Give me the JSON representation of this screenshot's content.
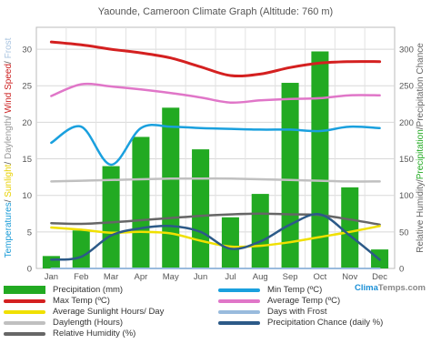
{
  "chart_data": {
    "type": "bar",
    "title": "Yaounde, Cameroon Climate Graph (Altitude: 760 m)",
    "categories": [
      "Jan",
      "Feb",
      "Mar",
      "Apr",
      "May",
      "Jun",
      "Jul",
      "Aug",
      "Sep",
      "Oct",
      "Nov",
      "Dec"
    ],
    "y_left_ticks": [
      0,
      5,
      10,
      15,
      20,
      25,
      30
    ],
    "y_right_ticks": [
      0,
      50,
      100,
      150,
      200,
      250,
      300
    ],
    "ylim_left": [
      0,
      33
    ],
    "ylim_right": [
      0,
      330
    ],
    "grid": true,
    "ylabel_left": [
      {
        "text": "Temperatures",
        "color": "#1a9bd7"
      },
      {
        "text": "/ ",
        "color": "#555555"
      },
      {
        "text": "Sunlight",
        "color": "#e8d000"
      },
      {
        "text": "/ ",
        "color": "#555555"
      },
      {
        "text": "Daylength",
        "color": "#999999"
      },
      {
        "text": "/ ",
        "color": "#555555"
      },
      {
        "text": "Wind Speed",
        "color": "#cc2222"
      },
      {
        "text": "/ ",
        "color": "#555555"
      },
      {
        "text": "Frost",
        "color": "#aac4e0"
      }
    ],
    "ylabel_right": [
      {
        "text": "Relative Humidity",
        "color": "#666666"
      },
      {
        "text": "/",
        "color": "#555555"
      },
      {
        "text": "Precipitation",
        "color": "#22aa22"
      },
      {
        "text": "/",
        "color": "#555555"
      },
      {
        "text": "Precipitation Chance",
        "color": "#666666"
      }
    ],
    "precipitation_mm": [
      17,
      52,
      140,
      180,
      220,
      163,
      70,
      102,
      254,
      297,
      111,
      26
    ],
    "series": [
      {
        "name": "Max Temp (ºC)",
        "axis": "left",
        "color": "#d42020",
        "values": [
          31,
          30.6,
          30,
          29.5,
          28.8,
          27.6,
          26.4,
          26.6,
          27.5,
          28.1,
          28.3,
          28.3
        ]
      },
      {
        "name": "Average Temp (ºC)",
        "axis": "left",
        "color": "#e076c8",
        "values": [
          23.6,
          25.2,
          24.9,
          24.5,
          24,
          23.4,
          22.7,
          23,
          23.2,
          23.3,
          23.7,
          23.7
        ]
      },
      {
        "name": "Min Temp (ºC)",
        "axis": "left",
        "color": "#1aa0de",
        "values": [
          17.2,
          19.4,
          14.2,
          19.2,
          19.4,
          19.2,
          19.1,
          19,
          19,
          18.8,
          19.4,
          19.2
        ]
      },
      {
        "name": "Daylength (Hours)",
        "axis": "left",
        "color": "#c0c0c0",
        "values": [
          11.9,
          12,
          12.1,
          12.2,
          12.3,
          12.3,
          12.3,
          12.2,
          12.1,
          12,
          11.9,
          11.9
        ]
      },
      {
        "name": "Relative Humidity (%)",
        "axis": "right",
        "color": "#666666",
        "values": [
          62,
          61,
          63,
          66,
          69,
          72,
          74,
          75,
          74,
          73,
          67,
          60
        ]
      },
      {
        "name": "Average Sunlight Hours/ Day",
        "axis": "left",
        "color": "#f0e000",
        "values": [
          5.6,
          5.3,
          4.9,
          5.0,
          4.8,
          3.8,
          3.0,
          3.1,
          3.6,
          4.3,
          5.0,
          5.8
        ]
      },
      {
        "name": "Precipitation Chance (daily %)",
        "axis": "right",
        "color": "#2c5a88",
        "values": [
          12,
          16,
          45,
          55,
          58,
          50,
          27,
          37,
          60,
          74,
          45,
          12
        ]
      },
      {
        "name": "Days with Frost",
        "axis": "left",
        "color": "#99bbdd",
        "values": [
          0,
          0,
          0,
          0,
          0,
          0,
          0,
          0,
          0,
          0,
          0,
          0
        ]
      }
    ]
  },
  "legend": [
    {
      "label": "Precipitation (mm)",
      "color": "#22aa22",
      "kind": "box"
    },
    {
      "label": "Min Temp (ºC)",
      "color": "#1aa0de",
      "kind": "line"
    },
    {
      "label": "Max Temp (ºC)",
      "color": "#d42020",
      "kind": "line"
    },
    {
      "label": "Average Temp (ºC)",
      "color": "#e076c8",
      "kind": "line"
    },
    {
      "label": "Average Sunlight Hours/ Day",
      "color": "#f0e000",
      "kind": "line"
    },
    {
      "label": "Days with Frost",
      "color": "#99bbdd",
      "kind": "line"
    },
    {
      "label": "Daylength (Hours)",
      "color": "#c0c0c0",
      "kind": "line"
    },
    {
      "label": "Precipitation Chance (daily %)",
      "color": "#2c5a88",
      "kind": "line"
    },
    {
      "label": "Relative Humidity (%)",
      "color": "#666666",
      "kind": "line"
    }
  ],
  "credit": {
    "part1": "Clima",
    "part2": "Temps.com"
  }
}
